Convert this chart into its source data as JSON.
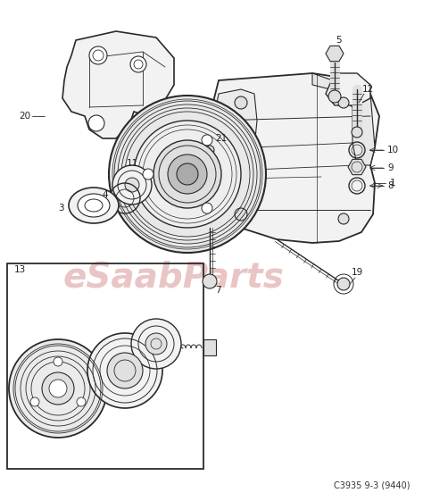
{
  "bg_color": "#ffffff",
  "fig_width": 4.74,
  "fig_height": 5.61,
  "dpi": 100,
  "watermark_text": "eSaabParts",
  "watermark_color": "#d08080",
  "watermark_alpha": 0.45,
  "ref_code": "C3935 9-3 (9440)",
  "line_color": "#2a2a2a",
  "light_fill": "#f2f2f2",
  "mid_fill": "#e0e0e0",
  "dark_fill": "#c0c0c0"
}
